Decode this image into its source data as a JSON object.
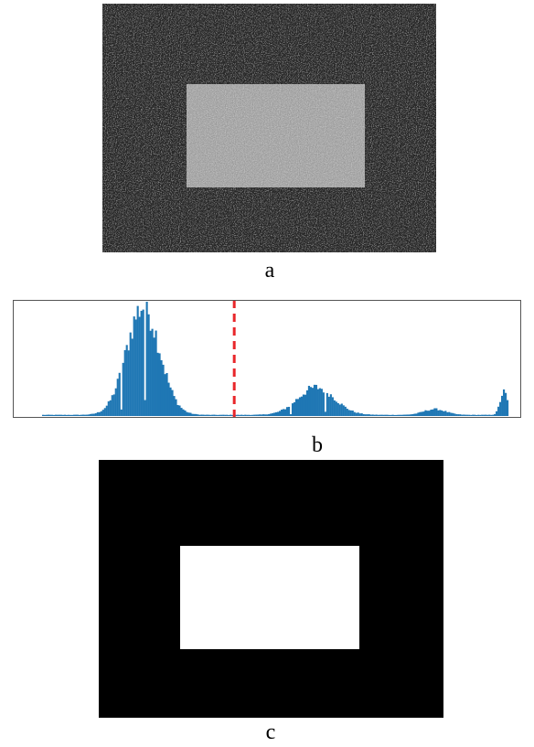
{
  "panels": {
    "a": {
      "caption": "a"
    },
    "b": {
      "caption": "b"
    },
    "c": {
      "caption": "c"
    }
  },
  "colors": {
    "noisy_background": "#2a2a2a",
    "noisy_rectangle": "#a8a8a8",
    "histogram_bars": "#1f77b4",
    "threshold_line": "#e8262a",
    "binary_background": "#000000",
    "binary_rectangle": "#ffffff",
    "frame": "#555555"
  },
  "chart_data": {
    "type": "bar",
    "title": "",
    "xlabel": "",
    "ylabel": "",
    "xlim": [
      0,
      255
    ],
    "ylim": [
      0,
      1
    ],
    "grid": false,
    "threshold": 105,
    "modes": [
      {
        "center": 55,
        "spread": 9,
        "peak": 0.95
      },
      {
        "center": 150,
        "spread": 10,
        "peak": 0.24
      },
      {
        "center": 215,
        "spread": 6,
        "peak": 0.05
      },
      {
        "center": 253,
        "spread": 2,
        "peak": 0.2
      }
    ],
    "gaps": [
      43,
      56,
      136,
      155
    ]
  }
}
